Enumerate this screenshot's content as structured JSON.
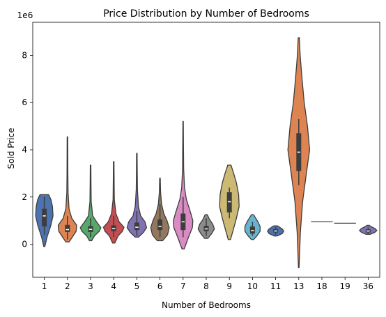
{
  "chart_data": {
    "type": "violin",
    "title": "Price Distribution by Number of Bedrooms",
    "xlabel": "Number of Bedrooms",
    "ylabel": "Sold Price",
    "y_multiplier_label": "1e6",
    "y_unit_multiplier": 1000000,
    "ylim": [
      -1.4,
      9.4
    ],
    "yticks": [
      0,
      2,
      4,
      6,
      8
    ],
    "grid": false,
    "legend": "none",
    "categories": [
      "1",
      "2",
      "3",
      "4",
      "5",
      "6",
      "7",
      "8",
      "9",
      "10",
      "11",
      "13",
      "18",
      "19",
      "36"
    ],
    "violins": [
      {
        "category": "1",
        "color": "#4c72b0",
        "ymin": -0.1,
        "ymax": 2.1,
        "profile": [
          [
            -0.1,
            0.01
          ],
          [
            0.3,
            0.05
          ],
          [
            0.8,
            0.12
          ],
          [
            1.2,
            0.16
          ],
          [
            1.6,
            0.15
          ],
          [
            1.9,
            0.12
          ],
          [
            2.1,
            0.08
          ]
        ],
        "q1": 0.75,
        "median": 1.2,
        "q3": 1.5,
        "whisker_low": 0.4,
        "whisker_high": 2.0
      },
      {
        "category": "2",
        "color": "#dd8452",
        "ymin": 0.1,
        "ymax": 4.55,
        "profile": [
          [
            0.1,
            0.03
          ],
          [
            0.3,
            0.09
          ],
          [
            0.55,
            0.16
          ],
          [
            0.8,
            0.17
          ],
          [
            1.1,
            0.08
          ],
          [
            1.5,
            0.03
          ],
          [
            2.2,
            0.012
          ],
          [
            3.0,
            0.008
          ],
          [
            4.55,
            0.005
          ]
        ],
        "q1": 0.52,
        "median": 0.62,
        "q3": 0.82,
        "whisker_low": 0.2,
        "whisker_high": 1.2
      },
      {
        "category": "3",
        "color": "#55a868",
        "ymin": 0.15,
        "ymax": 3.35,
        "profile": [
          [
            0.15,
            0.02
          ],
          [
            0.35,
            0.07
          ],
          [
            0.55,
            0.16
          ],
          [
            0.7,
            0.19
          ],
          [
            0.95,
            0.11
          ],
          [
            1.2,
            0.04
          ],
          [
            1.8,
            0.012
          ],
          [
            2.6,
            0.008
          ],
          [
            3.35,
            0.005
          ]
        ],
        "q1": 0.52,
        "median": 0.63,
        "q3": 0.77,
        "whisker_low": 0.3,
        "whisker_high": 1.1
      },
      {
        "category": "4",
        "color": "#c44e52",
        "ymin": 0.05,
        "ymax": 3.5,
        "profile": [
          [
            0.05,
            0.02
          ],
          [
            0.35,
            0.08
          ],
          [
            0.55,
            0.16
          ],
          [
            0.72,
            0.19
          ],
          [
            0.95,
            0.1
          ],
          [
            1.3,
            0.04
          ],
          [
            1.9,
            0.012
          ],
          [
            2.7,
            0.008
          ],
          [
            3.5,
            0.005
          ]
        ],
        "q1": 0.55,
        "median": 0.66,
        "q3": 0.8,
        "whisker_low": 0.3,
        "whisker_high": 1.2
      },
      {
        "category": "5",
        "color": "#8172b3",
        "ymin": 0.3,
        "ymax": 3.85,
        "profile": [
          [
            0.3,
            0.03
          ],
          [
            0.5,
            0.12
          ],
          [
            0.7,
            0.18
          ],
          [
            0.95,
            0.15
          ],
          [
            1.2,
            0.07
          ],
          [
            1.6,
            0.03
          ],
          [
            2.3,
            0.012
          ],
          [
            3.0,
            0.008
          ],
          [
            3.85,
            0.005
          ]
        ],
        "q1": 0.6,
        "median": 0.72,
        "q3": 0.92,
        "whisker_low": 0.35,
        "whisker_high": 1.4
      },
      {
        "category": "6",
        "color": "#937860",
        "ymin": 0.15,
        "ymax": 2.8,
        "profile": [
          [
            0.15,
            0.05
          ],
          [
            0.4,
            0.14
          ],
          [
            0.7,
            0.17
          ],
          [
            1.0,
            0.13
          ],
          [
            1.3,
            0.07
          ],
          [
            1.7,
            0.03
          ],
          [
            2.2,
            0.012
          ],
          [
            2.8,
            0.005
          ]
        ],
        "q1": 0.6,
        "median": 0.75,
        "q3": 1.05,
        "whisker_low": 0.3,
        "whisker_high": 1.7
      },
      {
        "category": "7",
        "color": "#da8bc3",
        "ymin": -0.2,
        "ymax": 5.2,
        "profile": [
          [
            -0.2,
            0.02
          ],
          [
            0.3,
            0.1
          ],
          [
            0.7,
            0.17
          ],
          [
            1.0,
            0.18
          ],
          [
            1.4,
            0.13
          ],
          [
            1.9,
            0.06
          ],
          [
            2.4,
            0.025
          ],
          [
            3.2,
            0.01
          ],
          [
            4.2,
            0.006
          ],
          [
            5.2,
            0.004
          ]
        ],
        "q1": 0.6,
        "median": 0.95,
        "q3": 1.3,
        "whisker_low": 0.3,
        "whisker_high": 2.0
      },
      {
        "category": "8",
        "color": "#8c8c8c",
        "ymin": 0.25,
        "ymax": 1.25,
        "profile": [
          [
            0.25,
            0.03
          ],
          [
            0.45,
            0.1
          ],
          [
            0.65,
            0.15
          ],
          [
            0.85,
            0.12
          ],
          [
            1.05,
            0.06
          ],
          [
            1.25,
            0.02
          ]
        ],
        "q1": 0.55,
        "median": 0.65,
        "q3": 0.78,
        "whisker_low": 0.35,
        "whisker_high": 1.1
      },
      {
        "category": "9",
        "color": "#ccb974",
        "ymin": 0.2,
        "ymax": 3.35,
        "profile": [
          [
            0.2,
            0.02
          ],
          [
            0.6,
            0.07
          ],
          [
            1.1,
            0.13
          ],
          [
            1.6,
            0.18
          ],
          [
            2.1,
            0.17
          ],
          [
            2.6,
            0.13
          ],
          [
            3.0,
            0.08
          ],
          [
            3.35,
            0.03
          ]
        ],
        "q1": 1.35,
        "median": 1.8,
        "q3": 2.2,
        "whisker_low": 1.1,
        "whisker_high": 2.4
      },
      {
        "category": "10",
        "color": "#64b5cd",
        "ymin": 0.2,
        "ymax": 1.25,
        "profile": [
          [
            0.2,
            0.02
          ],
          [
            0.35,
            0.08
          ],
          [
            0.55,
            0.14
          ],
          [
            0.75,
            0.14
          ],
          [
            0.95,
            0.1
          ],
          [
            1.1,
            0.06
          ],
          [
            1.25,
            0.02
          ]
        ],
        "q1": 0.45,
        "median": 0.58,
        "q3": 0.75,
        "whisker_low": 0.35,
        "whisker_high": 0.95
      },
      {
        "category": "11",
        "color": "#4c72b0",
        "ymin": 0.35,
        "ymax": 0.78,
        "profile": [
          [
            0.35,
            0.03
          ],
          [
            0.45,
            0.12
          ],
          [
            0.55,
            0.15
          ],
          [
            0.65,
            0.12
          ],
          [
            0.78,
            0.03
          ]
        ],
        "q1": 0.5,
        "median": 0.56,
        "q3": 0.64,
        "whisker_low": 0.4,
        "whisker_high": 0.72
      },
      {
        "category": "13",
        "color": "#dd8452",
        "ymin": -1.0,
        "ymax": 8.75,
        "profile": [
          [
            -1.0,
            0.005
          ],
          [
            0.5,
            0.03
          ],
          [
            1.8,
            0.07
          ],
          [
            3.0,
            0.14
          ],
          [
            4.0,
            0.2
          ],
          [
            5.0,
            0.16
          ],
          [
            6.0,
            0.1
          ],
          [
            7.0,
            0.06
          ],
          [
            8.0,
            0.025
          ],
          [
            8.75,
            0.01
          ]
        ],
        "q1": 3.1,
        "median": 3.9,
        "q3": 4.7,
        "whisker_low": 2.5,
        "whisker_high": 5.3
      },
      {
        "category": "18",
        "color": "#55a868",
        "ymin": 0.95,
        "ymax": 0.95,
        "single_value": true,
        "profile": [],
        "q1": 0.95,
        "median": 0.95,
        "q3": 0.95,
        "whisker_low": 0.95,
        "whisker_high": 0.95
      },
      {
        "category": "19",
        "color": "#c44e52",
        "ymin": 0.89,
        "ymax": 0.89,
        "single_value": true,
        "profile": [],
        "q1": 0.89,
        "median": 0.89,
        "q3": 0.89,
        "whisker_low": 0.89,
        "whisker_high": 0.89
      },
      {
        "category": "36",
        "color": "#8172b3",
        "ymin": 0.42,
        "ymax": 0.8,
        "profile": [
          [
            0.42,
            0.04
          ],
          [
            0.5,
            0.12
          ],
          [
            0.58,
            0.16
          ],
          [
            0.66,
            0.13
          ],
          [
            0.74,
            0.06
          ],
          [
            0.8,
            0.02
          ]
        ],
        "q1": 0.5,
        "median": 0.56,
        "q3": 0.63,
        "whisker_low": 0.45,
        "whisker_high": 0.72
      }
    ]
  }
}
